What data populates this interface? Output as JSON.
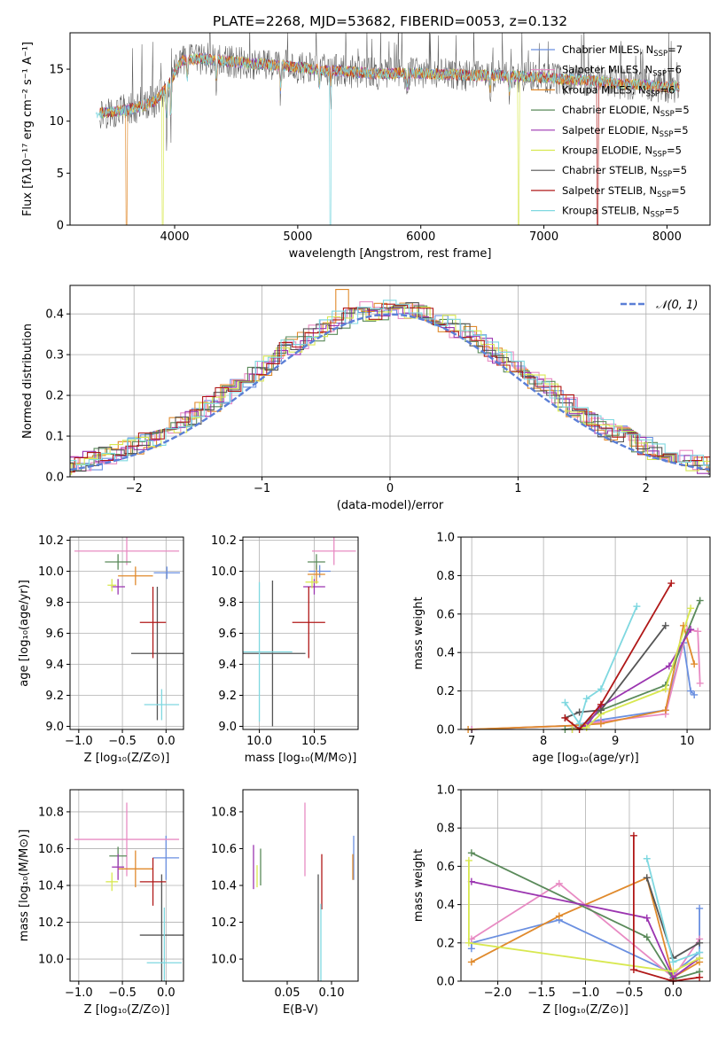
{
  "title": "PLATE=2268, MJD=53682, FIBERID=0053, z=0.132",
  "colors": {
    "chab_miles": "#6a8fe0",
    "salp_miles": "#e88bc3",
    "krou_miles": "#e08a2c",
    "chab_elodie": "#5a8a5a",
    "salp_elodie": "#9b35b0",
    "krou_elodie": "#d8e850",
    "chab_stelib": "#555555",
    "salp_stelib": "#b01818",
    "krou_stelib": "#7fd8e0",
    "gauss": "#5b7fd6",
    "grid": "#b0b0b0"
  },
  "chart_data": [
    {
      "id": "spectrum",
      "type": "line",
      "title": "PLATE=2268, MJD=53682, FIBERID=0053, z=0.132",
      "xlabel": "wavelength [Angstrom, rest frame]",
      "ylabel": "Flux [fλ10⁻¹⁷ erg cm⁻² s⁻¹ A⁻¹]",
      "xlim": [
        3150,
        8350
      ],
      "ylim": [
        0,
        18.5
      ],
      "xticks": [
        4000,
        5000,
        6000,
        7000,
        8000
      ],
      "yticks": [
        0,
        5,
        10,
        15
      ],
      "grid": false,
      "legend_position": "right",
      "legend": [
        {
          "label": "Chabrier MILES, N",
          "sub": "SSP",
          "suffix": "=7",
          "color": "chab_miles"
        },
        {
          "label": "Salpeter MILES, N",
          "sub": "SSP",
          "suffix": "=6",
          "color": "salp_miles"
        },
        {
          "label": "Kroupa MILES, N",
          "sub": "SSP",
          "suffix": "=6",
          "color": "krou_miles"
        },
        {
          "label": "Chabrier ELODIE, N",
          "sub": "SSP",
          "suffix": "=5",
          "color": "chab_elodie"
        },
        {
          "label": "Salpeter ELODIE, N",
          "sub": "SSP",
          "suffix": "=5",
          "color": "salp_elodie"
        },
        {
          "label": "Kroupa ELODIE, N",
          "sub": "SSP",
          "suffix": "=5",
          "color": "krou_elodie"
        },
        {
          "label": "Chabrier STELIB, N",
          "sub": "SSP",
          "suffix": "=5",
          "color": "chab_stelib"
        },
        {
          "label": "Salpeter STELIB, N",
          "sub": "SSP",
          "suffix": "=5",
          "color": "salp_stelib"
        },
        {
          "label": "Kroupa STELIB, N",
          "sub": "SSP",
          "suffix": "=5",
          "color": "krou_stelib"
        }
      ],
      "continuum": [
        [
          3400,
          10.8
        ],
        [
          3600,
          11.0
        ],
        [
          3750,
          11.5
        ],
        [
          3850,
          12.0
        ],
        [
          3950,
          13.5
        ],
        [
          4050,
          15.8
        ],
        [
          4200,
          16.0
        ],
        [
          4400,
          15.8
        ],
        [
          4600,
          15.6
        ],
        [
          4800,
          15.4
        ],
        [
          5000,
          15.2
        ],
        [
          5200,
          14.9
        ],
        [
          5400,
          14.8
        ],
        [
          5600,
          14.6
        ],
        [
          5800,
          14.6
        ],
        [
          6000,
          14.6
        ],
        [
          6200,
          14.5
        ],
        [
          6400,
          14.4
        ],
        [
          6600,
          14.4
        ],
        [
          6800,
          14.3
        ],
        [
          7000,
          14.2
        ],
        [
          7200,
          14.0
        ],
        [
          7400,
          13.9
        ],
        [
          7600,
          13.6
        ],
        [
          7800,
          13.5
        ],
        [
          8000,
          13.3
        ],
        [
          8100,
          13.3
        ]
      ],
      "dips": [
        [
          3934,
          3.5
        ],
        [
          3969,
          4.5
        ],
        [
          4102,
          2.0
        ],
        [
          4340,
          2.0
        ],
        [
          4861,
          2.5
        ],
        [
          5175,
          2.0
        ],
        [
          5270,
          1.5
        ],
        [
          5890,
          1.5
        ],
        [
          6563,
          1.5
        ],
        [
          6720,
          1.5
        ]
      ],
      "drops": [
        {
          "series": "krou_miles",
          "x": 3610
        },
        {
          "series": "krou_elodie",
          "x": 3905
        },
        {
          "series": "krou_stelib",
          "x": 5265
        },
        {
          "series": "krou_elodie",
          "x": 6795
        },
        {
          "series": "salp_stelib",
          "x": 7435
        }
      ]
    },
    {
      "id": "residuals",
      "type": "bar",
      "xlabel": "(data-model)/error",
      "ylabel": "Normed distribution",
      "xlim": [
        -2.5,
        2.5
      ],
      "ylim": [
        0,
        0.47
      ],
      "xticks": [
        -2,
        -1,
        0,
        1,
        2
      ],
      "yticks": [
        0.0,
        0.1,
        0.2,
        0.3,
        0.4
      ],
      "grid": true,
      "bin_width": 0.1,
      "gauss_label": "𝒩(0, 1)",
      "legend_position": "top-right"
    },
    {
      "id": "age_vs_Z",
      "type": "scatter",
      "xlabel": "Z [log₁₀(Z/Z⊙)]",
      "ylabel": "age  [log₁₀(age/yr)]",
      "xlim": [
        -1.1,
        0.2
      ],
      "ylim": [
        8.98,
        10.22
      ],
      "xticks": [
        -1.0,
        -0.5,
        0.0
      ],
      "yticks": [
        9.0,
        9.2,
        9.4,
        9.6,
        9.8,
        10.0,
        10.2
      ],
      "grid": true,
      "points": [
        {
          "s": "chab_miles",
          "x": 0.01,
          "y": 9.99,
          "xe": 0.15,
          "ye": 0.04
        },
        {
          "s": "salp_miles",
          "x": -0.45,
          "y": 10.13,
          "xe": 0.6,
          "ye": 0.09
        },
        {
          "s": "krou_miles",
          "x": -0.35,
          "y": 9.97,
          "xe": 0.2,
          "ye": 0.06
        },
        {
          "s": "chab_elodie",
          "x": -0.55,
          "y": 10.06,
          "xe": 0.15,
          "ye": 0.05
        },
        {
          "s": "salp_elodie",
          "x": -0.55,
          "y": 9.9,
          "xe": 0.08,
          "ye": 0.05
        },
        {
          "s": "krou_elodie",
          "x": -0.62,
          "y": 9.91,
          "xe": 0.05,
          "ye": 0.04
        },
        {
          "s": "chab_stelib",
          "x": -0.1,
          "y": 9.47,
          "xe": 0.3,
          "ye": 0.43
        },
        {
          "s": "salp_stelib",
          "x": -0.15,
          "y": 9.67,
          "xe": 0.15,
          "ye": 0.23
        },
        {
          "s": "krou_stelib",
          "x": -0.05,
          "y": 9.14,
          "xe": 0.2,
          "ye": 0.1
        }
      ]
    },
    {
      "id": "age_vs_mass",
      "type": "scatter",
      "xlabel": "mass [log₁₀(M/M⊙)]",
      "ylabel": "",
      "xlim": [
        9.85,
        10.9
      ],
      "ylim": [
        8.98,
        10.22
      ],
      "xticks": [
        10.0,
        10.5
      ],
      "yticks": [
        9.0,
        9.2,
        9.4,
        9.6,
        9.8,
        10.0,
        10.2
      ],
      "grid": true,
      "points": [
        {
          "s": "chab_miles",
          "x": 10.55,
          "y": 10.0,
          "xe": 0.1,
          "ye": 0.04
        },
        {
          "s": "salp_miles",
          "x": 10.68,
          "y": 10.13,
          "xe": 0.2,
          "ye": 0.09
        },
        {
          "s": "krou_miles",
          "x": 10.52,
          "y": 9.98,
          "xe": 0.08,
          "ye": 0.06
        },
        {
          "s": "chab_elodie",
          "x": 10.52,
          "y": 10.06,
          "xe": 0.08,
          "ye": 0.05
        },
        {
          "s": "salp_elodie",
          "x": 10.5,
          "y": 9.9,
          "xe": 0.1,
          "ye": 0.05
        },
        {
          "s": "krou_elodie",
          "x": 10.48,
          "y": 9.93,
          "xe": 0.06,
          "ye": 0.04
        },
        {
          "s": "chab_stelib",
          "x": 10.12,
          "y": 9.47,
          "xe": 0.3,
          "ye": 0.47
        },
        {
          "s": "salp_stelib",
          "x": 10.45,
          "y": 9.67,
          "xe": 0.15,
          "ye": 0.23
        },
        {
          "s": "krou_stelib",
          "x": 10.0,
          "y": 9.48,
          "xe": 0.3,
          "ye": 0.45
        }
      ]
    },
    {
      "id": "weight_vs_age",
      "type": "line",
      "xlabel": "age  [log₁₀(age/yr)]",
      "ylabel": "mass weight",
      "xlim": [
        6.85,
        10.32
      ],
      "ylim": [
        0,
        1.0
      ],
      "xticks": [
        7,
        8,
        9,
        10
      ],
      "yticks": [
        0.0,
        0.2,
        0.4,
        0.6,
        0.8,
        1.0
      ],
      "grid": true,
      "series": [
        {
          "s": "chab_miles",
          "x": [
            7.0,
            8.4,
            8.8,
            9.7,
            9.95,
            10.05,
            10.1
          ],
          "y": [
            0.0,
            0.02,
            0.05,
            0.1,
            0.45,
            0.2,
            0.18
          ]
        },
        {
          "s": "salp_miles",
          "x": [
            7.0,
            8.4,
            8.8,
            9.7,
            10.0,
            10.15,
            10.18
          ],
          "y": [
            0.0,
            0.02,
            0.04,
            0.08,
            0.52,
            0.51,
            0.24
          ]
        },
        {
          "s": "krou_miles",
          "x": [
            6.95,
            8.4,
            8.8,
            9.7,
            9.95,
            10.1
          ],
          "y": [
            0.0,
            0.02,
            0.03,
            0.1,
            0.54,
            0.34
          ]
        },
        {
          "s": "chab_elodie",
          "x": [
            8.3,
            8.5,
            8.8,
            9.7,
            10.18
          ],
          "y": [
            0.0,
            0.01,
            0.1,
            0.23,
            0.67
          ]
        },
        {
          "s": "salp_elodie",
          "x": [
            8.4,
            8.6,
            8.8,
            9.75,
            10.05
          ],
          "y": [
            0.0,
            0.02,
            0.12,
            0.33,
            0.52
          ]
        },
        {
          "s": "krou_elodie",
          "x": [
            8.4,
            8.6,
            8.8,
            9.7,
            10.05
          ],
          "y": [
            0.0,
            0.01,
            0.08,
            0.21,
            0.63
          ]
        },
        {
          "s": "chab_stelib",
          "x": [
            8.3,
            8.5,
            8.8,
            9.7
          ],
          "y": [
            0.06,
            0.09,
            0.1,
            0.54
          ]
        },
        {
          "s": "salp_stelib",
          "x": [
            8.3,
            8.5,
            8.8,
            9.78
          ],
          "y": [
            0.06,
            0.0,
            0.13,
            0.76
          ]
        },
        {
          "s": "krou_stelib",
          "x": [
            8.3,
            8.5,
            8.6,
            8.8,
            9.3
          ],
          "y": [
            0.14,
            0.03,
            0.16,
            0.21,
            0.64
          ]
        }
      ]
    },
    {
      "id": "mass_vs_Z",
      "type": "scatter",
      "xlabel": "Z [log₁₀(Z/Z⊙)]",
      "ylabel": "mass [log₁₀(M/M⊙)]",
      "xlim": [
        -1.1,
        0.2
      ],
      "ylim": [
        9.88,
        10.92
      ],
      "xticks": [
        -1.0,
        -0.5,
        0.0
      ],
      "yticks": [
        10.0,
        10.2,
        10.4,
        10.6,
        10.8
      ],
      "grid": true,
      "points": [
        {
          "s": "chab_miles",
          "x": 0.0,
          "y": 10.55,
          "xe": 0.15,
          "ye": 0.12
        },
        {
          "s": "salp_miles",
          "x": -0.45,
          "y": 10.65,
          "xe": 0.6,
          "ye": 0.2
        },
        {
          "s": "krou_miles",
          "x": -0.35,
          "y": 10.49,
          "xe": 0.2,
          "ye": 0.1
        },
        {
          "s": "chab_elodie",
          "x": -0.55,
          "y": 10.56,
          "xe": 0.1,
          "ye": 0.05
        },
        {
          "s": "salp_elodie",
          "x": -0.55,
          "y": 10.5,
          "xe": 0.07,
          "ye": 0.07
        },
        {
          "s": "krou_elodie",
          "x": -0.62,
          "y": 10.42,
          "xe": 0.07,
          "ye": 0.05
        },
        {
          "s": "chab_stelib",
          "x": -0.05,
          "y": 10.13,
          "xe": 0.25,
          "ye": 0.33
        },
        {
          "s": "salp_stelib",
          "x": -0.15,
          "y": 10.42,
          "xe": 0.15,
          "ye": 0.13
        },
        {
          "s": "krou_stelib",
          "x": -0.02,
          "y": 9.98,
          "xe": 0.2,
          "ye": 0.3
        }
      ]
    },
    {
      "id": "mass_vs_ebv",
      "type": "scatter",
      "xlabel": "E(B-V)",
      "ylabel": "",
      "xlim": [
        0.0,
        0.13
      ],
      "ylim": [
        9.88,
        10.92
      ],
      "xticks": [
        0.05,
        0.1
      ],
      "yticks": [
        10.0,
        10.2,
        10.4,
        10.6,
        10.8
      ],
      "grid": false,
      "points": [
        {
          "s": "chab_miles",
          "x": 0.125,
          "y": 10.55,
          "xe": 0,
          "ye": 0.12
        },
        {
          "s": "salp_miles",
          "x": 0.07,
          "y": 10.65,
          "xe": 0,
          "ye": 0.2
        },
        {
          "s": "krou_miles",
          "x": 0.124,
          "y": 10.5,
          "xe": 0,
          "ye": 0.07
        },
        {
          "s": "chab_elodie",
          "x": 0.02,
          "y": 10.5,
          "xe": 0,
          "ye": 0.1
        },
        {
          "s": "salp_elodie",
          "x": 0.012,
          "y": 10.5,
          "xe": 0,
          "ye": 0.12
        },
        {
          "s": "krou_elodie",
          "x": 0.016,
          "y": 10.45,
          "xe": 0,
          "ye": 0.06
        },
        {
          "s": "chab_stelib",
          "x": 0.085,
          "y": 10.13,
          "xe": 0,
          "ye": 0.33
        },
        {
          "s": "salp_stelib",
          "x": 0.089,
          "y": 10.42,
          "xe": 0,
          "ye": 0.15
        },
        {
          "s": "krou_stelib",
          "x": 0.088,
          "y": 10.0,
          "xe": 0,
          "ye": 0.3
        }
      ]
    },
    {
      "id": "weight_vs_Z",
      "type": "line",
      "xlabel": "Z [log₁₀(Z/Z⊙)]",
      "ylabel": "mass weight",
      "xlim": [
        -2.42,
        0.42
      ],
      "ylim": [
        0,
        1.0
      ],
      "xticks": [
        -2.0,
        -1.5,
        -1.0,
        -0.5,
        0.0
      ],
      "yticks": [
        0.0,
        0.2,
        0.4,
        0.6,
        0.8,
        1.0
      ],
      "grid": true,
      "series": [
        {
          "s": "chab_miles",
          "x": [
            -2.3,
            -2.3,
            -1.3,
            0.0,
            0.3,
            0.3
          ],
          "y": [
            0.17,
            0.2,
            0.32,
            0.04,
            0.15,
            0.38
          ]
        },
        {
          "s": "salp_miles",
          "x": [
            -2.3,
            -1.3,
            0.0,
            0.3
          ],
          "y": [
            0.22,
            0.51,
            0.02,
            0.22
          ]
        },
        {
          "s": "krou_miles",
          "x": [
            -2.3,
            -1.3,
            -0.3,
            0.0,
            0.3
          ],
          "y": [
            0.1,
            0.34,
            0.54,
            0.02,
            0.1
          ]
        },
        {
          "s": "chab_elodie",
          "x": [
            -2.3,
            -0.3,
            0.0,
            0.3
          ],
          "y": [
            0.67,
            0.23,
            0.01,
            0.05
          ]
        },
        {
          "s": "salp_elodie",
          "x": [
            -2.3,
            -0.3,
            0.0,
            0.3
          ],
          "y": [
            0.52,
            0.33,
            0.02,
            0.12
          ]
        },
        {
          "s": "krou_elodie",
          "x": [
            -2.33,
            -2.33,
            0.0,
            0.3
          ],
          "y": [
            0.63,
            0.2,
            0.05,
            0.12
          ]
        },
        {
          "s": "chab_stelib",
          "x": [
            -0.3,
            0.0,
            0.3
          ],
          "y": [
            0.54,
            0.12,
            0.2
          ]
        },
        {
          "s": "salp_stelib",
          "x": [
            -0.45,
            -0.45,
            0.0,
            0.3
          ],
          "y": [
            0.76,
            0.06,
            0.0,
            0.02
          ]
        },
        {
          "s": "krou_stelib",
          "x": [
            -0.3,
            0.0,
            0.3
          ],
          "y": [
            0.64,
            0.1,
            0.15
          ]
        }
      ]
    }
  ]
}
